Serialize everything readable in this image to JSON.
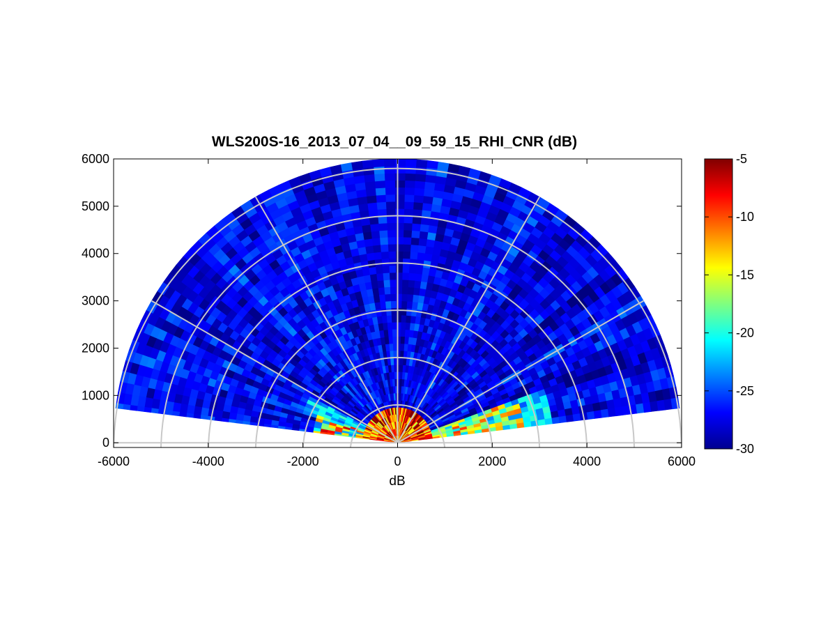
{
  "figure": {
    "title": "WLS200S-16_2013_07_04__09_59_15_RHI_CNR (dB)",
    "xlabel": "dB"
  },
  "chart_data": {
    "type": "heatmap",
    "subtype": "polar-rhi-sector",
    "title": "WLS200S-16_2013_07_04__09_59_15_RHI_CNR (dB)",
    "xlabel": "dB",
    "ylabel": "",
    "xlim": [
      -6000,
      6000
    ],
    "ylim": [
      -100,
      6000
    ],
    "xticks": [
      "-6000",
      "-4000",
      "-2000",
      "0",
      "2000",
      "4000",
      "6000"
    ],
    "yticks": [
      "0",
      "1000",
      "2000",
      "3000",
      "4000",
      "5000",
      "6000"
    ],
    "max_range": 6000,
    "range_rings": [
      1000,
      2000,
      3000,
      4000,
      5000,
      6000
    ],
    "spokes_deg": [
      0,
      30,
      60,
      90,
      120,
      150,
      180
    ],
    "elevation_coverage_deg": [
      7,
      173
    ],
    "grid": true,
    "colormap": "jet",
    "colorbar": {
      "min": -30,
      "max": -5,
      "ticks": [
        "-5",
        "-10",
        "-15",
        "-20",
        "-25",
        "-30"
      ]
    },
    "typical_value_db": -27,
    "near_field_high_values": "up to -5 dB below ~2500 m range at low elevation"
  },
  "colors": {
    "grid": "#c8c8c8",
    "axis": "#000000",
    "background": "#ffffff"
  }
}
